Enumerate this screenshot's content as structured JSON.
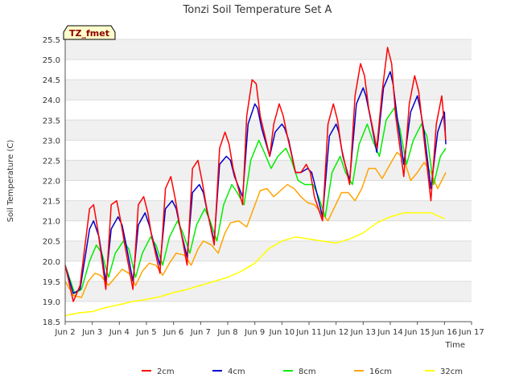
{
  "chart_data": {
    "type": "line",
    "title": "Tonzi Soil Temperature Set A",
    "xlabel": "Time",
    "ylabel": "Soil Temperature (C)",
    "site_label": "TZ_fmet",
    "xlim": [
      2,
      17
    ],
    "ylim": [
      18.5,
      25.5
    ],
    "x_ticks": [
      2,
      3,
      4,
      5,
      6,
      7,
      8,
      9,
      10,
      11,
      12,
      13,
      14,
      15,
      16,
      17
    ],
    "x_tick_labels": [
      "Jun 2",
      "Jun 3",
      "Jun 4",
      "Jun 5",
      "Jun 6",
      "Jun 7",
      "Jun 8",
      "Jun 9",
      "Jun 10",
      "Jun 11",
      "Jun 12",
      "Jun 13",
      "Jun 14",
      "Jun 15",
      "Jun 16",
      "Jun 17"
    ],
    "y_ticks": [
      18.5,
      19.0,
      19.5,
      20.0,
      20.5,
      21.0,
      21.5,
      22.0,
      22.5,
      23.0,
      23.5,
      24.0,
      24.5,
      25.0,
      25.5
    ],
    "y_tick_labels": [
      "18.5",
      "19.0",
      "19.5",
      "20.0",
      "20.5",
      "21.0",
      "21.5",
      "22.0",
      "22.5",
      "23.0",
      "23.5",
      "24.0",
      "24.5",
      "25.0",
      "25.5"
    ],
    "grid": true,
    "legend_position": "bottom-center",
    "series": [
      {
        "name": "2cm",
        "color": "#ff0000",
        "x": [
          2.0,
          2.3,
          2.55,
          2.9,
          3.05,
          3.2,
          3.5,
          3.7,
          3.9,
          4.05,
          4.2,
          4.5,
          4.7,
          4.9,
          5.05,
          5.2,
          5.5,
          5.7,
          5.9,
          6.05,
          6.2,
          6.5,
          6.7,
          6.9,
          7.05,
          7.2,
          7.5,
          7.7,
          7.9,
          8.05,
          8.2,
          8.55,
          8.7,
          8.9,
          9.05,
          9.2,
          9.55,
          9.7,
          9.9,
          10.05,
          10.2,
          10.5,
          10.7,
          10.9,
          11.05,
          11.2,
          11.5,
          11.7,
          11.9,
          12.05,
          12.2,
          12.5,
          12.7,
          12.9,
          13.05,
          13.2,
          13.5,
          13.7,
          13.9,
          14.05,
          14.2,
          14.5,
          14.7,
          14.9,
          15.05,
          15.2,
          15.5,
          15.7,
          15.9,
          16.05
        ],
        "y": [
          19.9,
          19.0,
          19.4,
          21.3,
          21.4,
          20.8,
          19.3,
          21.4,
          21.5,
          21.0,
          20.4,
          19.3,
          21.4,
          21.6,
          21.2,
          20.6,
          19.7,
          21.8,
          22.1,
          21.6,
          21.0,
          19.9,
          22.3,
          22.5,
          22.0,
          21.4,
          20.4,
          22.8,
          23.2,
          22.9,
          22.3,
          21.4,
          23.6,
          24.5,
          24.4,
          23.6,
          22.6,
          23.4,
          23.9,
          23.6,
          23.1,
          22.2,
          22.2,
          22.4,
          22.2,
          21.6,
          21.0,
          23.4,
          23.9,
          23.5,
          22.8,
          21.9,
          24.1,
          24.9,
          24.6,
          23.8,
          22.8,
          24.2,
          25.3,
          24.9,
          23.6,
          22.1,
          23.9,
          24.6,
          24.2,
          23.3,
          21.5,
          23.4,
          24.1,
          23.0
        ]
      },
      {
        "name": "4cm",
        "color": "#0000cc",
        "x": [
          2.0,
          2.3,
          2.55,
          2.9,
          3.05,
          3.25,
          3.5,
          3.7,
          3.95,
          4.1,
          4.25,
          4.5,
          4.7,
          4.95,
          5.1,
          5.25,
          5.5,
          5.7,
          5.95,
          6.1,
          6.25,
          6.5,
          6.7,
          6.95,
          7.1,
          7.25,
          7.5,
          7.7,
          7.95,
          8.1,
          8.25,
          8.55,
          8.75,
          9.0,
          9.1,
          9.25,
          9.55,
          9.75,
          10.0,
          10.1,
          10.25,
          10.5,
          10.7,
          10.95,
          11.1,
          11.25,
          11.5,
          11.75,
          12.0,
          12.1,
          12.25,
          12.5,
          12.75,
          13.0,
          13.1,
          13.25,
          13.5,
          13.75,
          14.0,
          14.1,
          14.25,
          14.5,
          14.75,
          15.0,
          15.1,
          15.25,
          15.5,
          15.75,
          16.0,
          16.05
        ],
        "y": [
          19.9,
          19.2,
          19.3,
          20.8,
          21.0,
          20.6,
          19.5,
          20.8,
          21.1,
          20.9,
          20.4,
          19.5,
          20.9,
          21.2,
          20.9,
          20.5,
          19.9,
          21.3,
          21.5,
          21.3,
          20.8,
          20.1,
          21.7,
          21.9,
          21.7,
          21.2,
          20.5,
          22.4,
          22.6,
          22.5,
          22.1,
          21.6,
          23.4,
          23.9,
          23.8,
          23.3,
          22.6,
          23.2,
          23.4,
          23.3,
          23.0,
          22.2,
          22.2,
          22.3,
          22.2,
          21.8,
          21.1,
          23.1,
          23.4,
          23.2,
          22.6,
          22.0,
          23.9,
          24.3,
          24.1,
          23.6,
          22.7,
          24.3,
          24.7,
          24.4,
          23.6,
          22.4,
          23.7,
          24.1,
          23.8,
          23.2,
          21.8,
          23.2,
          23.7,
          22.9
        ]
      },
      {
        "name": "8cm",
        "color": "#00ee00",
        "x": [
          2.0,
          2.35,
          2.6,
          2.9,
          3.15,
          3.35,
          3.6,
          3.85,
          4.15,
          4.35,
          4.6,
          4.85,
          5.15,
          5.35,
          5.6,
          5.85,
          6.15,
          6.35,
          6.6,
          6.85,
          7.15,
          7.35,
          7.6,
          7.85,
          8.15,
          8.35,
          8.6,
          8.85,
          9.15,
          9.35,
          9.6,
          9.85,
          10.15,
          10.35,
          10.6,
          10.85,
          11.15,
          11.35,
          11.6,
          11.85,
          12.15,
          12.35,
          12.6,
          12.85,
          13.15,
          13.35,
          13.6,
          13.85,
          14.15,
          14.35,
          14.6,
          14.85,
          15.15,
          15.35,
          15.6,
          15.85,
          16.05
        ],
        "y": [
          19.9,
          19.2,
          19.3,
          20.0,
          20.4,
          20.2,
          19.6,
          20.2,
          20.5,
          20.3,
          19.6,
          20.2,
          20.6,
          20.4,
          19.9,
          20.6,
          21.0,
          20.7,
          20.2,
          20.9,
          21.3,
          21.0,
          20.5,
          21.4,
          21.9,
          21.7,
          21.4,
          22.5,
          23.0,
          22.7,
          22.3,
          22.6,
          22.8,
          22.5,
          22.0,
          21.9,
          21.9,
          21.6,
          21.1,
          22.2,
          22.6,
          22.2,
          21.9,
          22.9,
          23.4,
          23.0,
          22.6,
          23.5,
          23.8,
          23.3,
          22.4,
          23.0,
          23.4,
          23.1,
          21.9,
          22.6,
          22.8
        ]
      },
      {
        "name": "16cm",
        "color": "#ffa500",
        "x": [
          2.0,
          2.3,
          2.6,
          2.85,
          3.1,
          3.3,
          3.6,
          3.85,
          4.1,
          4.35,
          4.6,
          4.85,
          5.1,
          5.35,
          5.6,
          5.85,
          6.1,
          6.4,
          6.65,
          6.9,
          7.1,
          7.4,
          7.65,
          7.9,
          8.1,
          8.4,
          8.7,
          8.95,
          9.2,
          9.45,
          9.7,
          9.95,
          10.2,
          10.45,
          10.7,
          10.95,
          11.2,
          11.45,
          11.7,
          11.95,
          12.2,
          12.45,
          12.7,
          12.95,
          13.2,
          13.45,
          13.7,
          13.95,
          14.25,
          14.5,
          14.75,
          15.0,
          15.25,
          15.5,
          15.75,
          16.05
        ],
        "y": [
          19.5,
          19.15,
          19.1,
          19.5,
          19.7,
          19.65,
          19.4,
          19.6,
          19.8,
          19.7,
          19.4,
          19.75,
          19.95,
          19.9,
          19.65,
          19.95,
          20.2,
          20.15,
          19.9,
          20.3,
          20.5,
          20.4,
          20.2,
          20.7,
          20.95,
          21.0,
          20.85,
          21.3,
          21.75,
          21.8,
          21.6,
          21.75,
          21.9,
          21.8,
          21.6,
          21.45,
          21.4,
          21.2,
          21.0,
          21.35,
          21.7,
          21.7,
          21.5,
          21.8,
          22.3,
          22.3,
          22.05,
          22.35,
          22.7,
          22.55,
          22.0,
          22.2,
          22.45,
          22.2,
          21.8,
          22.2
        ]
      },
      {
        "name": "32cm",
        "color": "#ffff00",
        "x": [
          2.0,
          2.5,
          3.0,
          3.5,
          4.0,
          4.5,
          5.0,
          5.5,
          6.0,
          6.5,
          7.0,
          7.5,
          8.0,
          8.5,
          9.0,
          9.5,
          10.0,
          10.5,
          11.0,
          11.5,
          12.0,
          12.5,
          13.0,
          13.5,
          14.0,
          14.5,
          15.0,
          15.5,
          16.0
        ],
        "y": [
          18.65,
          18.72,
          18.75,
          18.85,
          18.92,
          19.0,
          19.05,
          19.12,
          19.22,
          19.3,
          19.4,
          19.5,
          19.6,
          19.75,
          19.95,
          20.3,
          20.5,
          20.6,
          20.55,
          20.5,
          20.45,
          20.55,
          20.7,
          20.95,
          21.1,
          21.2,
          21.2,
          21.2,
          21.05
        ]
      }
    ]
  }
}
